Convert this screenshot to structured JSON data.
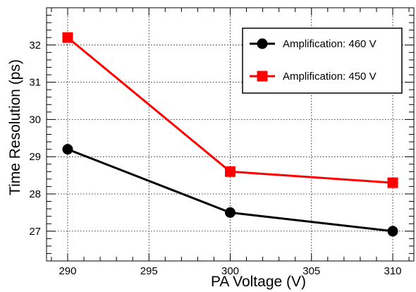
{
  "chart_data": {
    "type": "line",
    "title": "",
    "xlabel": "PA Voltage (V)",
    "ylabel": "Time Resolution (ps)",
    "xlim": [
      288.7,
      311.3
    ],
    "ylim": [
      26.2,
      33.0
    ],
    "xticks": [
      290,
      295,
      300,
      305,
      310
    ],
    "yticks": [
      27,
      28,
      29,
      30,
      31,
      32
    ],
    "grid": true,
    "legend_position": "top-right",
    "series": [
      {
        "name": "Amplification: 460 V",
        "x": [
          290,
          300,
          310
        ],
        "y": [
          29.2,
          27.5,
          27.0
        ],
        "color": "#000000",
        "marker": "circle"
      },
      {
        "name": "Amplification: 450 V",
        "x": [
          290,
          300,
          310
        ],
        "y": [
          32.2,
          28.6,
          28.3
        ],
        "color": "#ff0000",
        "marker": "square"
      }
    ]
  }
}
